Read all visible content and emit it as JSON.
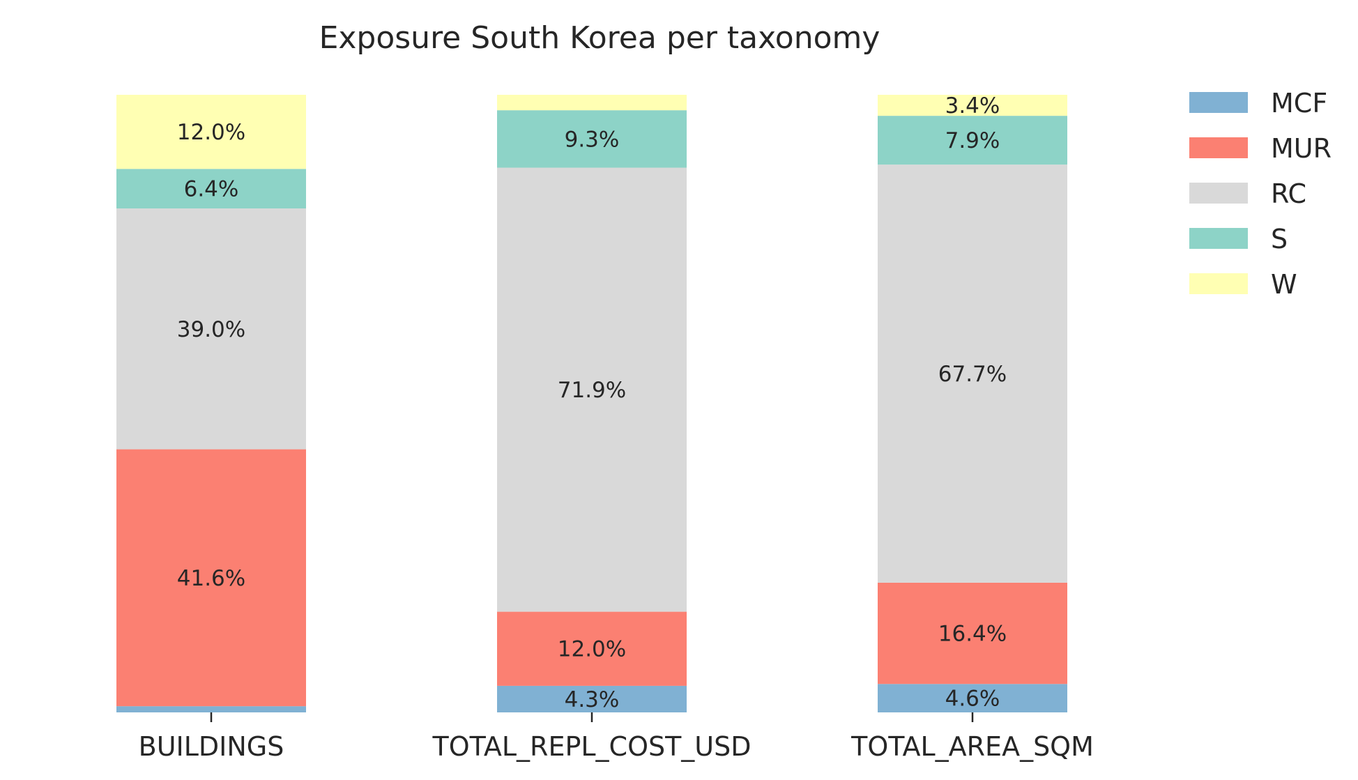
{
  "chart_data": {
    "type": "bar",
    "stacked": true,
    "normalized": true,
    "title": "Exposure South Korea per taxonomy",
    "categories": [
      "BUILDINGS",
      "TOTAL_REPL_COST_USD",
      "TOTAL_AREA_SQM"
    ],
    "ylim": [
      0,
      100
    ],
    "grid": false,
    "legend_position": "top-right",
    "series": [
      {
        "name": "MCF",
        "color": "#80b1d3",
        "values": [
          1.0,
          4.3,
          4.6
        ],
        "labels": [
          "",
          "4.3%",
          "4.6%"
        ]
      },
      {
        "name": "MUR",
        "color": "#fb8072",
        "values": [
          41.6,
          12.0,
          16.4
        ],
        "labels": [
          "41.6%",
          "12.0%",
          "16.4%"
        ]
      },
      {
        "name": "RC",
        "color": "#d9d9d9",
        "values": [
          39.0,
          71.9,
          67.7
        ],
        "labels": [
          "39.0%",
          "71.9%",
          "67.7%"
        ]
      },
      {
        "name": "S",
        "color": "#8dd3c7",
        "values": [
          6.4,
          9.3,
          7.9
        ],
        "labels": [
          "6.4%",
          "9.3%",
          "7.9%"
        ]
      },
      {
        "name": "W",
        "color": "#ffffb3",
        "values": [
          12.0,
          2.5,
          3.4
        ],
        "labels": [
          "12.0%",
          "",
          "3.4%"
        ]
      }
    ]
  }
}
